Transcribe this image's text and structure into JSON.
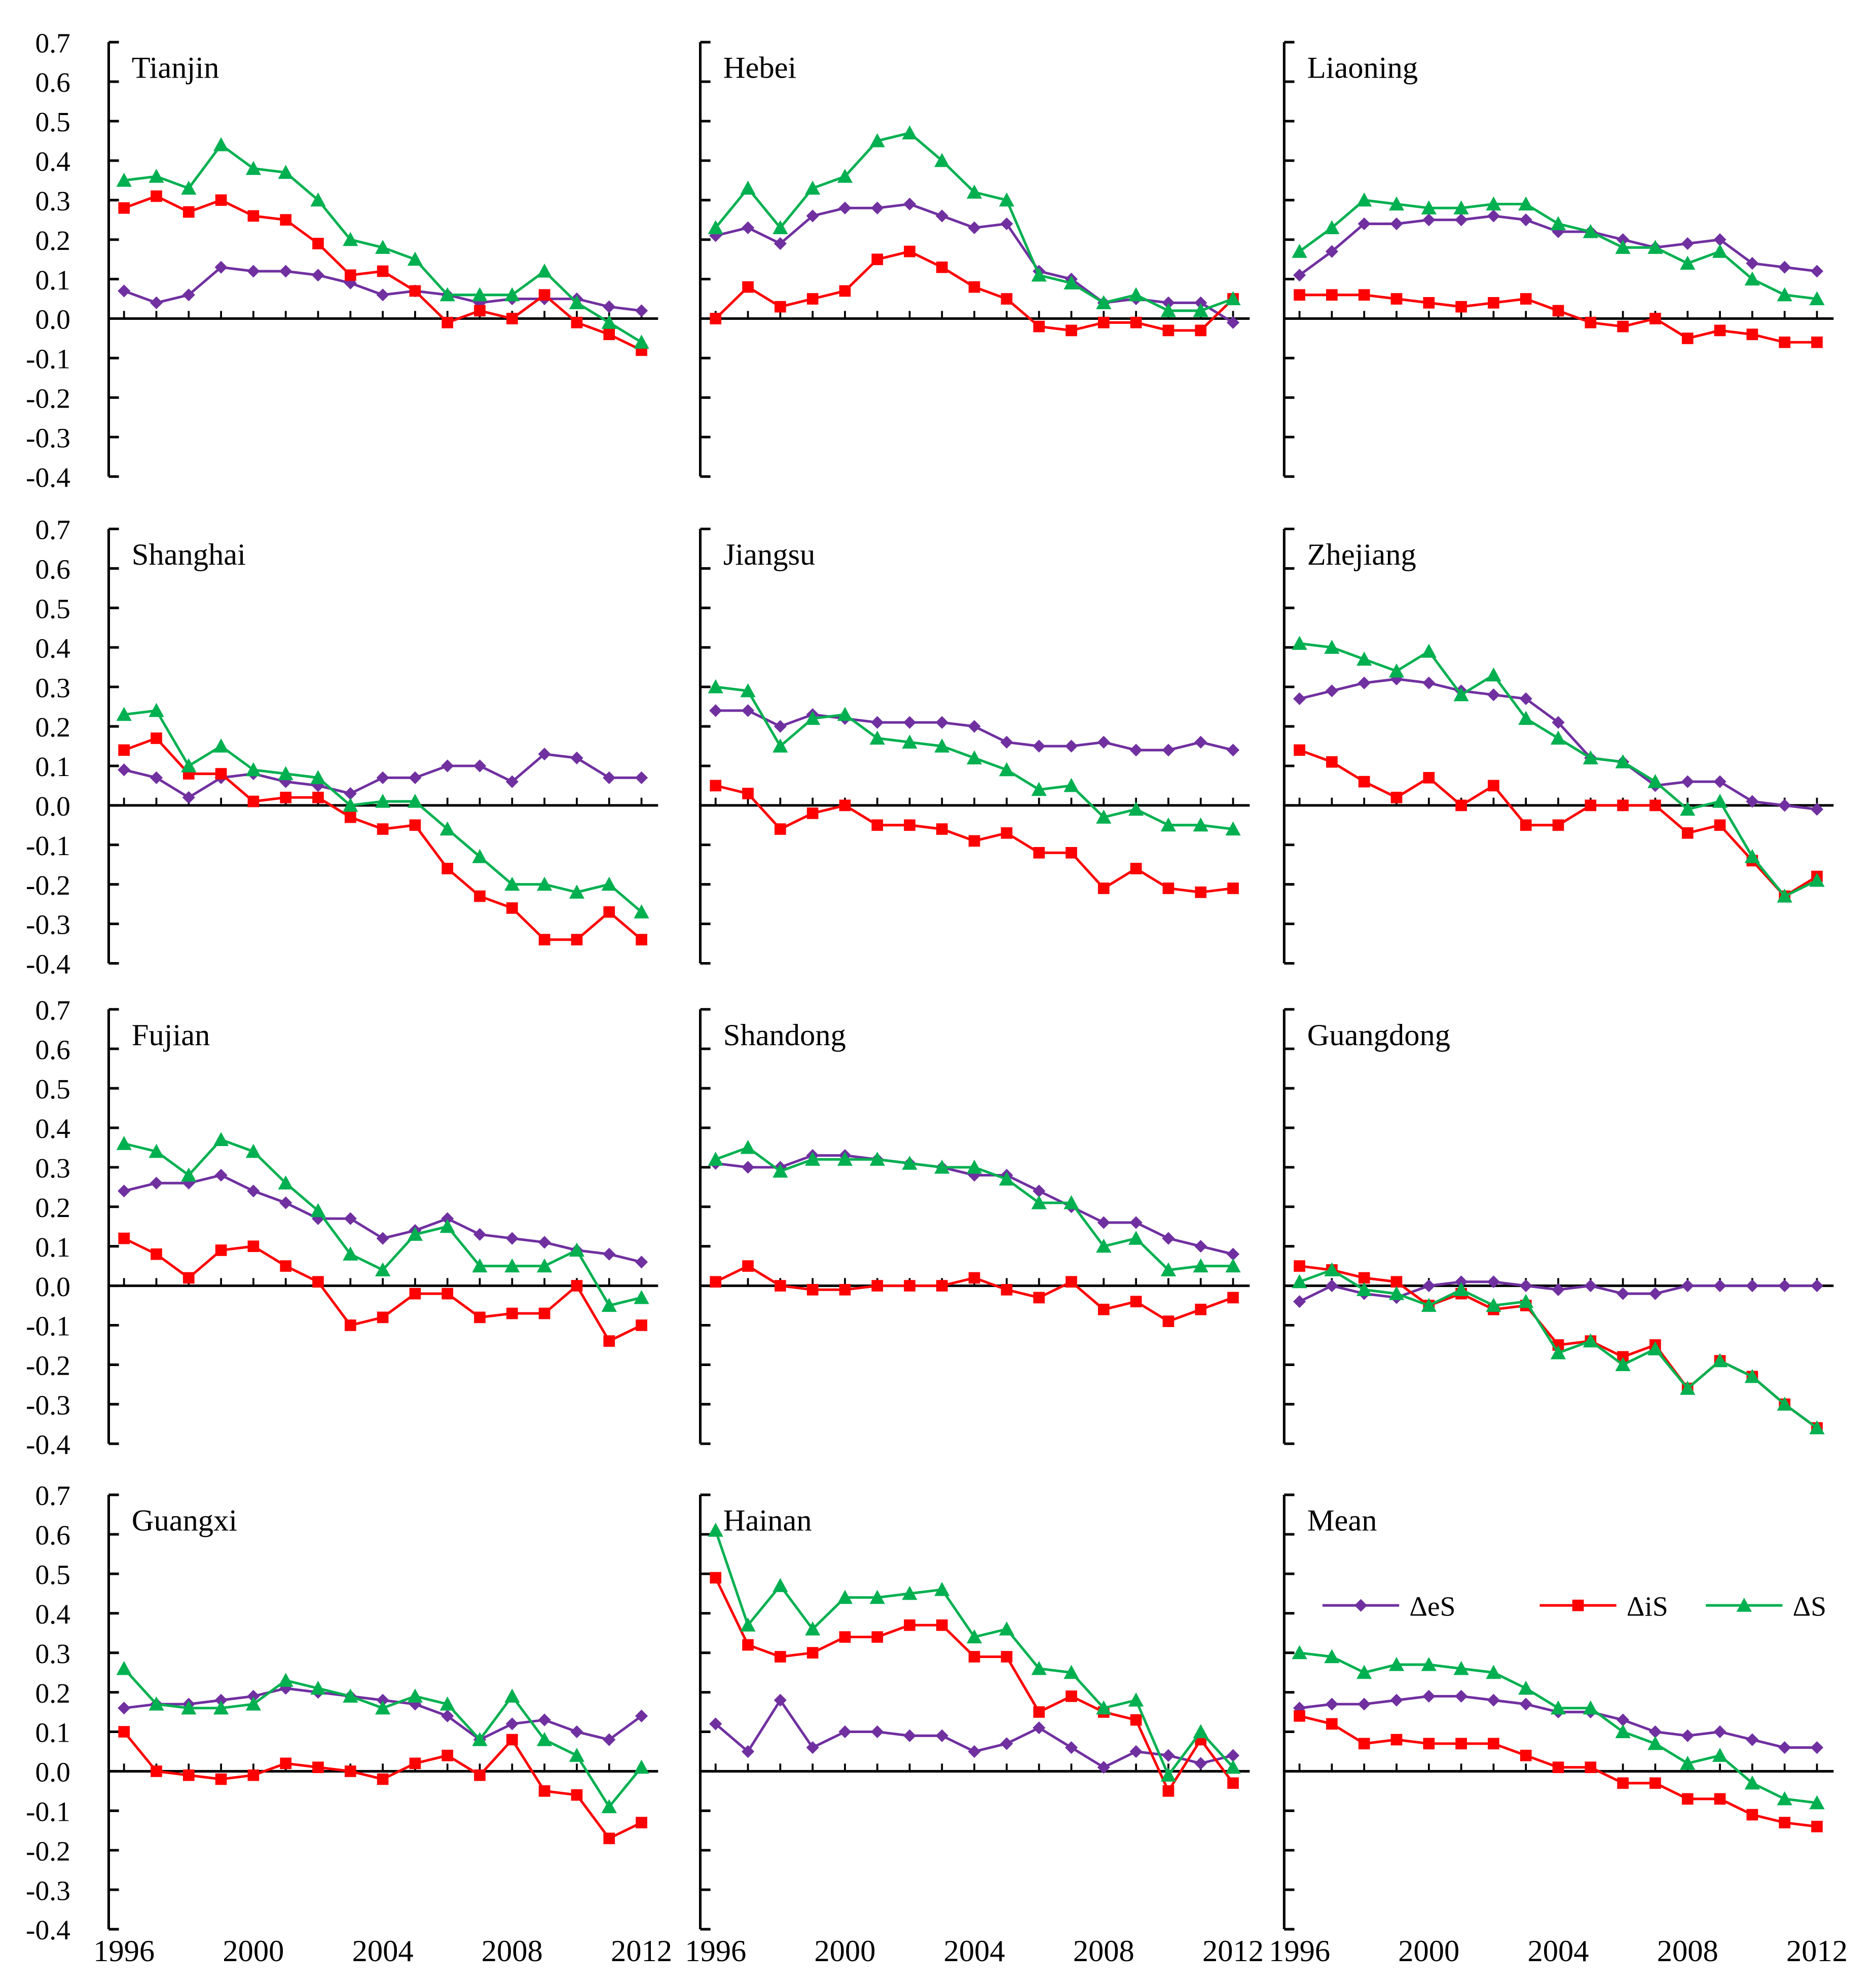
{
  "chart_data": {
    "type": "line",
    "x": [
      1996,
      1997,
      1998,
      1999,
      2000,
      2001,
      2002,
      2003,
      2004,
      2005,
      2006,
      2007,
      2008,
      2009,
      2010,
      2011,
      2012
    ],
    "x_tick_labels": [
      "1996",
      "2000",
      "2004",
      "2008",
      "2012"
    ],
    "y_tick_labels": [
      "0.7",
      "0.6",
      "0.5",
      "0.4",
      "0.3",
      "0.2",
      "0.1",
      "0.0",
      "-0.1",
      "-0.2",
      "-0.3",
      "-0.4"
    ],
    "ylim": [
      -0.4,
      0.7
    ],
    "legend": {
      "placement": "Mean panel, upper",
      "entries": [
        "ΔeS",
        "ΔiS",
        "ΔS"
      ]
    },
    "series_styles": [
      {
        "name": "ΔeS",
        "color": "#7030A0",
        "marker": "diamond"
      },
      {
        "name": "ΔiS",
        "color": "#FF0000",
        "marker": "square"
      },
      {
        "name": "ΔS",
        "color": "#00B050",
        "marker": "triangle"
      }
    ],
    "panels": [
      {
        "title": "Tianjin",
        "series": [
          {
            "name": "ΔeS",
            "values": [
              0.07,
              0.04,
              0.06,
              0.13,
              0.12,
              0.12,
              0.11,
              0.09,
              0.06,
              0.07,
              0.06,
              0.04,
              0.05,
              0.05,
              0.05,
              0.03,
              0.02
            ]
          },
          {
            "name": "ΔiS",
            "values": [
              0.28,
              0.31,
              0.27,
              0.3,
              0.26,
              0.25,
              0.19,
              0.11,
              0.12,
              0.07,
              -0.01,
              0.02,
              0.0,
              0.06,
              -0.01,
              -0.04,
              -0.08
            ]
          },
          {
            "name": "ΔS",
            "values": [
              0.35,
              0.36,
              0.33,
              0.44,
              0.38,
              0.37,
              0.3,
              0.2,
              0.18,
              0.15,
              0.06,
              0.06,
              0.06,
              0.12,
              0.04,
              -0.01,
              -0.06
            ]
          }
        ]
      },
      {
        "title": "Hebei",
        "series": [
          {
            "name": "ΔeS",
            "values": [
              0.21,
              0.23,
              0.19,
              0.26,
              0.28,
              0.28,
              0.29,
              0.26,
              0.23,
              0.24,
              0.12,
              0.1,
              0.04,
              0.05,
              0.04,
              0.04,
              -0.01
            ]
          },
          {
            "name": "ΔiS",
            "values": [
              0.0,
              0.08,
              0.03,
              0.05,
              0.07,
              0.15,
              0.17,
              0.13,
              0.08,
              0.05,
              -0.02,
              -0.03,
              -0.01,
              -0.01,
              -0.03,
              -0.03,
              0.05
            ]
          },
          {
            "name": "ΔS",
            "values": [
              0.23,
              0.33,
              0.23,
              0.33,
              0.36,
              0.45,
              0.47,
              0.4,
              0.32,
              0.3,
              0.11,
              0.09,
              0.04,
              0.06,
              0.02,
              0.02,
              0.05
            ]
          }
        ]
      },
      {
        "title": "Liaoning",
        "series": [
          {
            "name": "ΔeS",
            "values": [
              0.11,
              0.17,
              0.24,
              0.24,
              0.25,
              0.25,
              0.26,
              0.25,
              0.22,
              0.22,
              0.2,
              0.18,
              0.19,
              0.2,
              0.14,
              0.13,
              0.12
            ]
          },
          {
            "name": "ΔiS",
            "values": [
              0.06,
              0.06,
              0.06,
              0.05,
              0.04,
              0.03,
              0.04,
              0.05,
              0.02,
              -0.01,
              -0.02,
              0.0,
              -0.05,
              -0.03,
              -0.04,
              -0.06,
              -0.06
            ]
          },
          {
            "name": "ΔS",
            "values": [
              0.17,
              0.23,
              0.3,
              0.29,
              0.28,
              0.28,
              0.29,
              0.29,
              0.24,
              0.22,
              0.18,
              0.18,
              0.14,
              0.17,
              0.1,
              0.06,
              0.05
            ]
          }
        ]
      },
      {
        "title": "Shanghai",
        "series": [
          {
            "name": "ΔeS",
            "values": [
              0.09,
              0.07,
              0.02,
              0.07,
              0.08,
              0.06,
              0.05,
              0.03,
              0.07,
              0.07,
              0.1,
              0.1,
              0.06,
              0.13,
              0.12,
              0.07,
              0.07
            ]
          },
          {
            "name": "ΔiS",
            "values": [
              0.14,
              0.17,
              0.08,
              0.08,
              0.01,
              0.02,
              0.02,
              -0.03,
              -0.06,
              -0.05,
              -0.16,
              -0.23,
              -0.26,
              -0.34,
              -0.34,
              -0.27,
              -0.34
            ]
          },
          {
            "name": "ΔS",
            "values": [
              0.23,
              0.24,
              0.1,
              0.15,
              0.09,
              0.08,
              0.07,
              0.0,
              0.01,
              0.01,
              -0.06,
              -0.13,
              -0.2,
              -0.2,
              -0.22,
              -0.2,
              -0.27
            ]
          }
        ]
      },
      {
        "title": "Jiangsu",
        "series": [
          {
            "name": "ΔeS",
            "values": [
              0.24,
              0.24,
              0.2,
              0.23,
              0.22,
              0.21,
              0.21,
              0.21,
              0.2,
              0.16,
              0.15,
              0.15,
              0.16,
              0.14,
              0.14,
              0.16,
              0.14
            ]
          },
          {
            "name": "ΔiS",
            "values": [
              0.05,
              0.03,
              -0.06,
              -0.02,
              0.0,
              -0.05,
              -0.05,
              -0.06,
              -0.09,
              -0.07,
              -0.12,
              -0.12,
              -0.21,
              -0.16,
              -0.21,
              -0.22,
              -0.21
            ]
          },
          {
            "name": "ΔS",
            "values": [
              0.3,
              0.29,
              0.15,
              0.22,
              0.23,
              0.17,
              0.16,
              0.15,
              0.12,
              0.09,
              0.04,
              0.05,
              -0.03,
              -0.01,
              -0.05,
              -0.05,
              -0.06
            ]
          }
        ]
      },
      {
        "title": "Zhejiang",
        "series": [
          {
            "name": "ΔeS",
            "values": [
              0.27,
              0.29,
              0.31,
              0.32,
              0.31,
              0.29,
              0.28,
              0.27,
              0.21,
              0.12,
              0.11,
              0.05,
              0.06,
              0.06,
              0.01,
              0.0,
              -0.01
            ]
          },
          {
            "name": "ΔiS",
            "values": [
              0.14,
              0.11,
              0.06,
              0.02,
              0.07,
              0.0,
              0.05,
              -0.05,
              -0.05,
              0.0,
              0.0,
              0.0,
              -0.07,
              -0.05,
              -0.14,
              -0.23,
              -0.18
            ]
          },
          {
            "name": "ΔS",
            "values": [
              0.41,
              0.4,
              0.37,
              0.34,
              0.39,
              0.28,
              0.33,
              0.22,
              0.17,
              0.12,
              0.11,
              0.06,
              -0.01,
              0.01,
              -0.13,
              -0.23,
              -0.19
            ]
          }
        ]
      },
      {
        "title": "Fujian",
        "series": [
          {
            "name": "ΔeS",
            "values": [
              0.24,
              0.26,
              0.26,
              0.28,
              0.24,
              0.21,
              0.17,
              0.17,
              0.12,
              0.14,
              0.17,
              0.13,
              0.12,
              0.11,
              0.09,
              0.08,
              0.06
            ]
          },
          {
            "name": "ΔiS",
            "values": [
              0.12,
              0.08,
              0.02,
              0.09,
              0.1,
              0.05,
              0.01,
              -0.1,
              -0.08,
              -0.02,
              -0.02,
              -0.08,
              -0.07,
              -0.07,
              0.0,
              -0.14,
              -0.1
            ]
          },
          {
            "name": "ΔS",
            "values": [
              0.36,
              0.34,
              0.28,
              0.37,
              0.34,
              0.26,
              0.19,
              0.08,
              0.04,
              0.13,
              0.15,
              0.05,
              0.05,
              0.05,
              0.09,
              -0.05,
              -0.03
            ]
          }
        ]
      },
      {
        "title": "Shandong",
        "series": [
          {
            "name": "ΔeS",
            "values": [
              0.31,
              0.3,
              0.3,
              0.33,
              0.33,
              0.32,
              0.31,
              0.3,
              0.28,
              0.28,
              0.24,
              0.2,
              0.16,
              0.16,
              0.12,
              0.1,
              0.08
            ]
          },
          {
            "name": "ΔiS",
            "values": [
              0.01,
              0.05,
              0.0,
              -0.01,
              -0.01,
              0.0,
              0.0,
              0.0,
              0.02,
              -0.01,
              -0.03,
              0.01,
              -0.06,
              -0.04,
              -0.09,
              -0.06,
              -0.03
            ]
          },
          {
            "name": "ΔS",
            "values": [
              0.32,
              0.35,
              0.29,
              0.32,
              0.32,
              0.32,
              0.31,
              0.3,
              0.3,
              0.27,
              0.21,
              0.21,
              0.1,
              0.12,
              0.04,
              0.05,
              0.05
            ]
          }
        ]
      },
      {
        "title": "Guangdong",
        "series": [
          {
            "name": "ΔeS",
            "values": [
              -0.04,
              0.0,
              -0.02,
              -0.03,
              0.0,
              0.01,
              0.01,
              0.0,
              -0.01,
              0.0,
              -0.02,
              -0.02,
              0.0,
              0.0,
              0.0,
              0.0,
              0.0
            ]
          },
          {
            "name": "ΔiS",
            "values": [
              0.05,
              0.04,
              0.02,
              0.01,
              -0.05,
              -0.02,
              -0.06,
              -0.05,
              -0.15,
              -0.14,
              -0.18,
              -0.15,
              -0.26,
              -0.19,
              -0.23,
              -0.3,
              -0.36
            ]
          },
          {
            "name": "ΔS",
            "values": [
              0.01,
              0.04,
              -0.01,
              -0.02,
              -0.05,
              -0.01,
              -0.05,
              -0.04,
              -0.17,
              -0.14,
              -0.2,
              -0.16,
              -0.26,
              -0.19,
              -0.23,
              -0.3,
              -0.36
            ]
          }
        ]
      },
      {
        "title": "Guangxi",
        "series": [
          {
            "name": "ΔeS",
            "values": [
              0.16,
              0.17,
              0.17,
              0.18,
              0.19,
              0.21,
              0.2,
              0.19,
              0.18,
              0.17,
              0.14,
              0.08,
              0.12,
              0.13,
              0.1,
              0.08,
              0.14
            ]
          },
          {
            "name": "ΔiS",
            "values": [
              0.1,
              0.0,
              -0.01,
              -0.02,
              -0.01,
              0.02,
              0.01,
              0.0,
              -0.02,
              0.02,
              0.04,
              -0.01,
              0.08,
              -0.05,
              -0.06,
              -0.17,
              -0.13
            ]
          },
          {
            "name": "ΔS",
            "values": [
              0.26,
              0.17,
              0.16,
              0.16,
              0.17,
              0.23,
              0.21,
              0.19,
              0.16,
              0.19,
              0.17,
              0.08,
              0.19,
              0.08,
              0.04,
              -0.09,
              0.01
            ]
          }
        ]
      },
      {
        "title": "Hainan",
        "series": [
          {
            "name": "ΔeS",
            "values": [
              0.12,
              0.05,
              0.18,
              0.06,
              0.1,
              0.1,
              0.09,
              0.09,
              0.05,
              0.07,
              0.11,
              0.06,
              0.01,
              0.05,
              0.04,
              0.02,
              0.04
            ]
          },
          {
            "name": "ΔiS",
            "values": [
              0.49,
              0.32,
              0.29,
              0.3,
              0.34,
              0.34,
              0.37,
              0.37,
              0.29,
              0.29,
              0.15,
              0.19,
              0.15,
              0.13,
              -0.05,
              0.08,
              -0.03
            ]
          },
          {
            "name": "ΔS",
            "values": [
              0.61,
              0.37,
              0.47,
              0.36,
              0.44,
              0.44,
              0.45,
              0.46,
              0.34,
              0.36,
              0.26,
              0.25,
              0.16,
              0.18,
              -0.01,
              0.1,
              0.01
            ]
          }
        ]
      },
      {
        "title": "Mean",
        "series": [
          {
            "name": "ΔeS",
            "values": [
              0.16,
              0.17,
              0.17,
              0.18,
              0.19,
              0.19,
              0.18,
              0.17,
              0.15,
              0.15,
              0.13,
              0.1,
              0.09,
              0.1,
              0.08,
              0.06,
              0.06
            ]
          },
          {
            "name": "ΔiS",
            "values": [
              0.14,
              0.12,
              0.07,
              0.08,
              0.07,
              0.07,
              0.07,
              0.04,
              0.01,
              0.01,
              -0.03,
              -0.03,
              -0.07,
              -0.07,
              -0.11,
              -0.13,
              -0.14
            ]
          },
          {
            "name": "ΔS",
            "values": [
              0.3,
              0.29,
              0.25,
              0.27,
              0.27,
              0.26,
              0.25,
              0.21,
              0.16,
              0.16,
              0.1,
              0.07,
              0.02,
              0.04,
              -0.03,
              -0.07,
              -0.08
            ]
          }
        ]
      }
    ]
  }
}
